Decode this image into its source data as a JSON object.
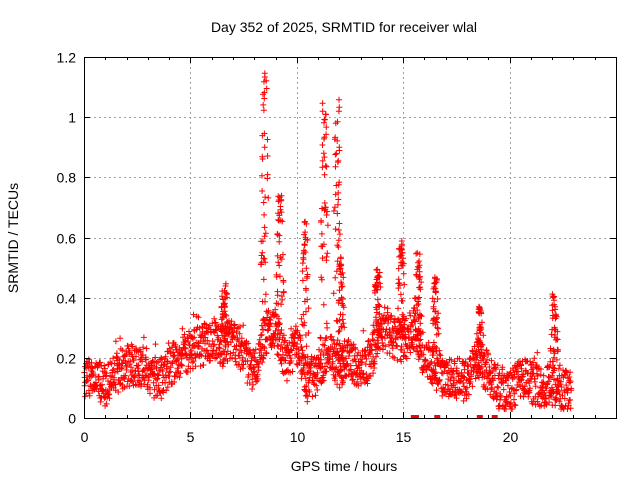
{
  "chart_data": {
    "type": "scatter",
    "title": "Day 352 of 2025, SRMTID for receiver wlal",
    "xlabel": "GPS time / hours",
    "ylabel": "SRMTID / TECUs",
    "xlim": [
      0,
      25
    ],
    "ylim": [
      0,
      1.2
    ],
    "xticks": [
      0,
      5,
      10,
      15,
      20
    ],
    "yticks": [
      0,
      0.2,
      0.4,
      0.6,
      0.8,
      1,
      1.2
    ],
    "xtick_labels": [
      "0",
      "5",
      "10",
      "15",
      "20"
    ],
    "ytick_labels": [
      "0",
      "0.2",
      "0.4",
      "0.6",
      "0.8",
      "1",
      "1.2"
    ],
    "grid": true,
    "marker": "plus",
    "color": "#ff0000",
    "baseline_profile": {
      "x": [
        0,
        0.5,
        1,
        1.5,
        2,
        2.5,
        3,
        3.5,
        4,
        4.5,
        5,
        5.5,
        6,
        6.5,
        7,
        7.5,
        8,
        8.5,
        9,
        9.5,
        10,
        10.5,
        11,
        11.5,
        12,
        12.5,
        13,
        13.5,
        14,
        14.5,
        15,
        15.5,
        16,
        16.5,
        17,
        17.5,
        18,
        18.5,
        19,
        19.5,
        20,
        20.5,
        21,
        21.5,
        22,
        22.5,
        22.9
      ],
      "y": [
        0.13,
        0.12,
        0.11,
        0.15,
        0.17,
        0.18,
        0.16,
        0.12,
        0.17,
        0.2,
        0.23,
        0.24,
        0.26,
        0.24,
        0.27,
        0.2,
        0.15,
        0.28,
        0.3,
        0.18,
        0.25,
        0.12,
        0.15,
        0.22,
        0.17,
        0.2,
        0.15,
        0.2,
        0.3,
        0.27,
        0.25,
        0.3,
        0.2,
        0.15,
        0.14,
        0.13,
        0.12,
        0.2,
        0.15,
        0.1,
        0.08,
        0.13,
        0.12,
        0.1,
        0.11,
        0.09,
        0.09
      ],
      "spread": 0.07
    },
    "peaks": [
      {
        "x": 6.6,
        "y": 0.45
      },
      {
        "x": 8.5,
        "y": 1.15
      },
      {
        "x": 9.2,
        "y": 0.76
      },
      {
        "x": 10.4,
        "y": 0.68
      },
      {
        "x": 11.3,
        "y": 1.05
      },
      {
        "x": 11.9,
        "y": 1.08
      },
      {
        "x": 12.1,
        "y": 0.55
      },
      {
        "x": 13.8,
        "y": 0.5
      },
      {
        "x": 14.9,
        "y": 0.59
      },
      {
        "x": 15.7,
        "y": 0.56
      },
      {
        "x": 16.5,
        "y": 0.47
      },
      {
        "x": 18.6,
        "y": 0.37
      },
      {
        "x": 22.1,
        "y": 0.44
      }
    ],
    "zero_markers_x": [
      15.5,
      15.6,
      16.6,
      18.6,
      19.3
    ]
  }
}
